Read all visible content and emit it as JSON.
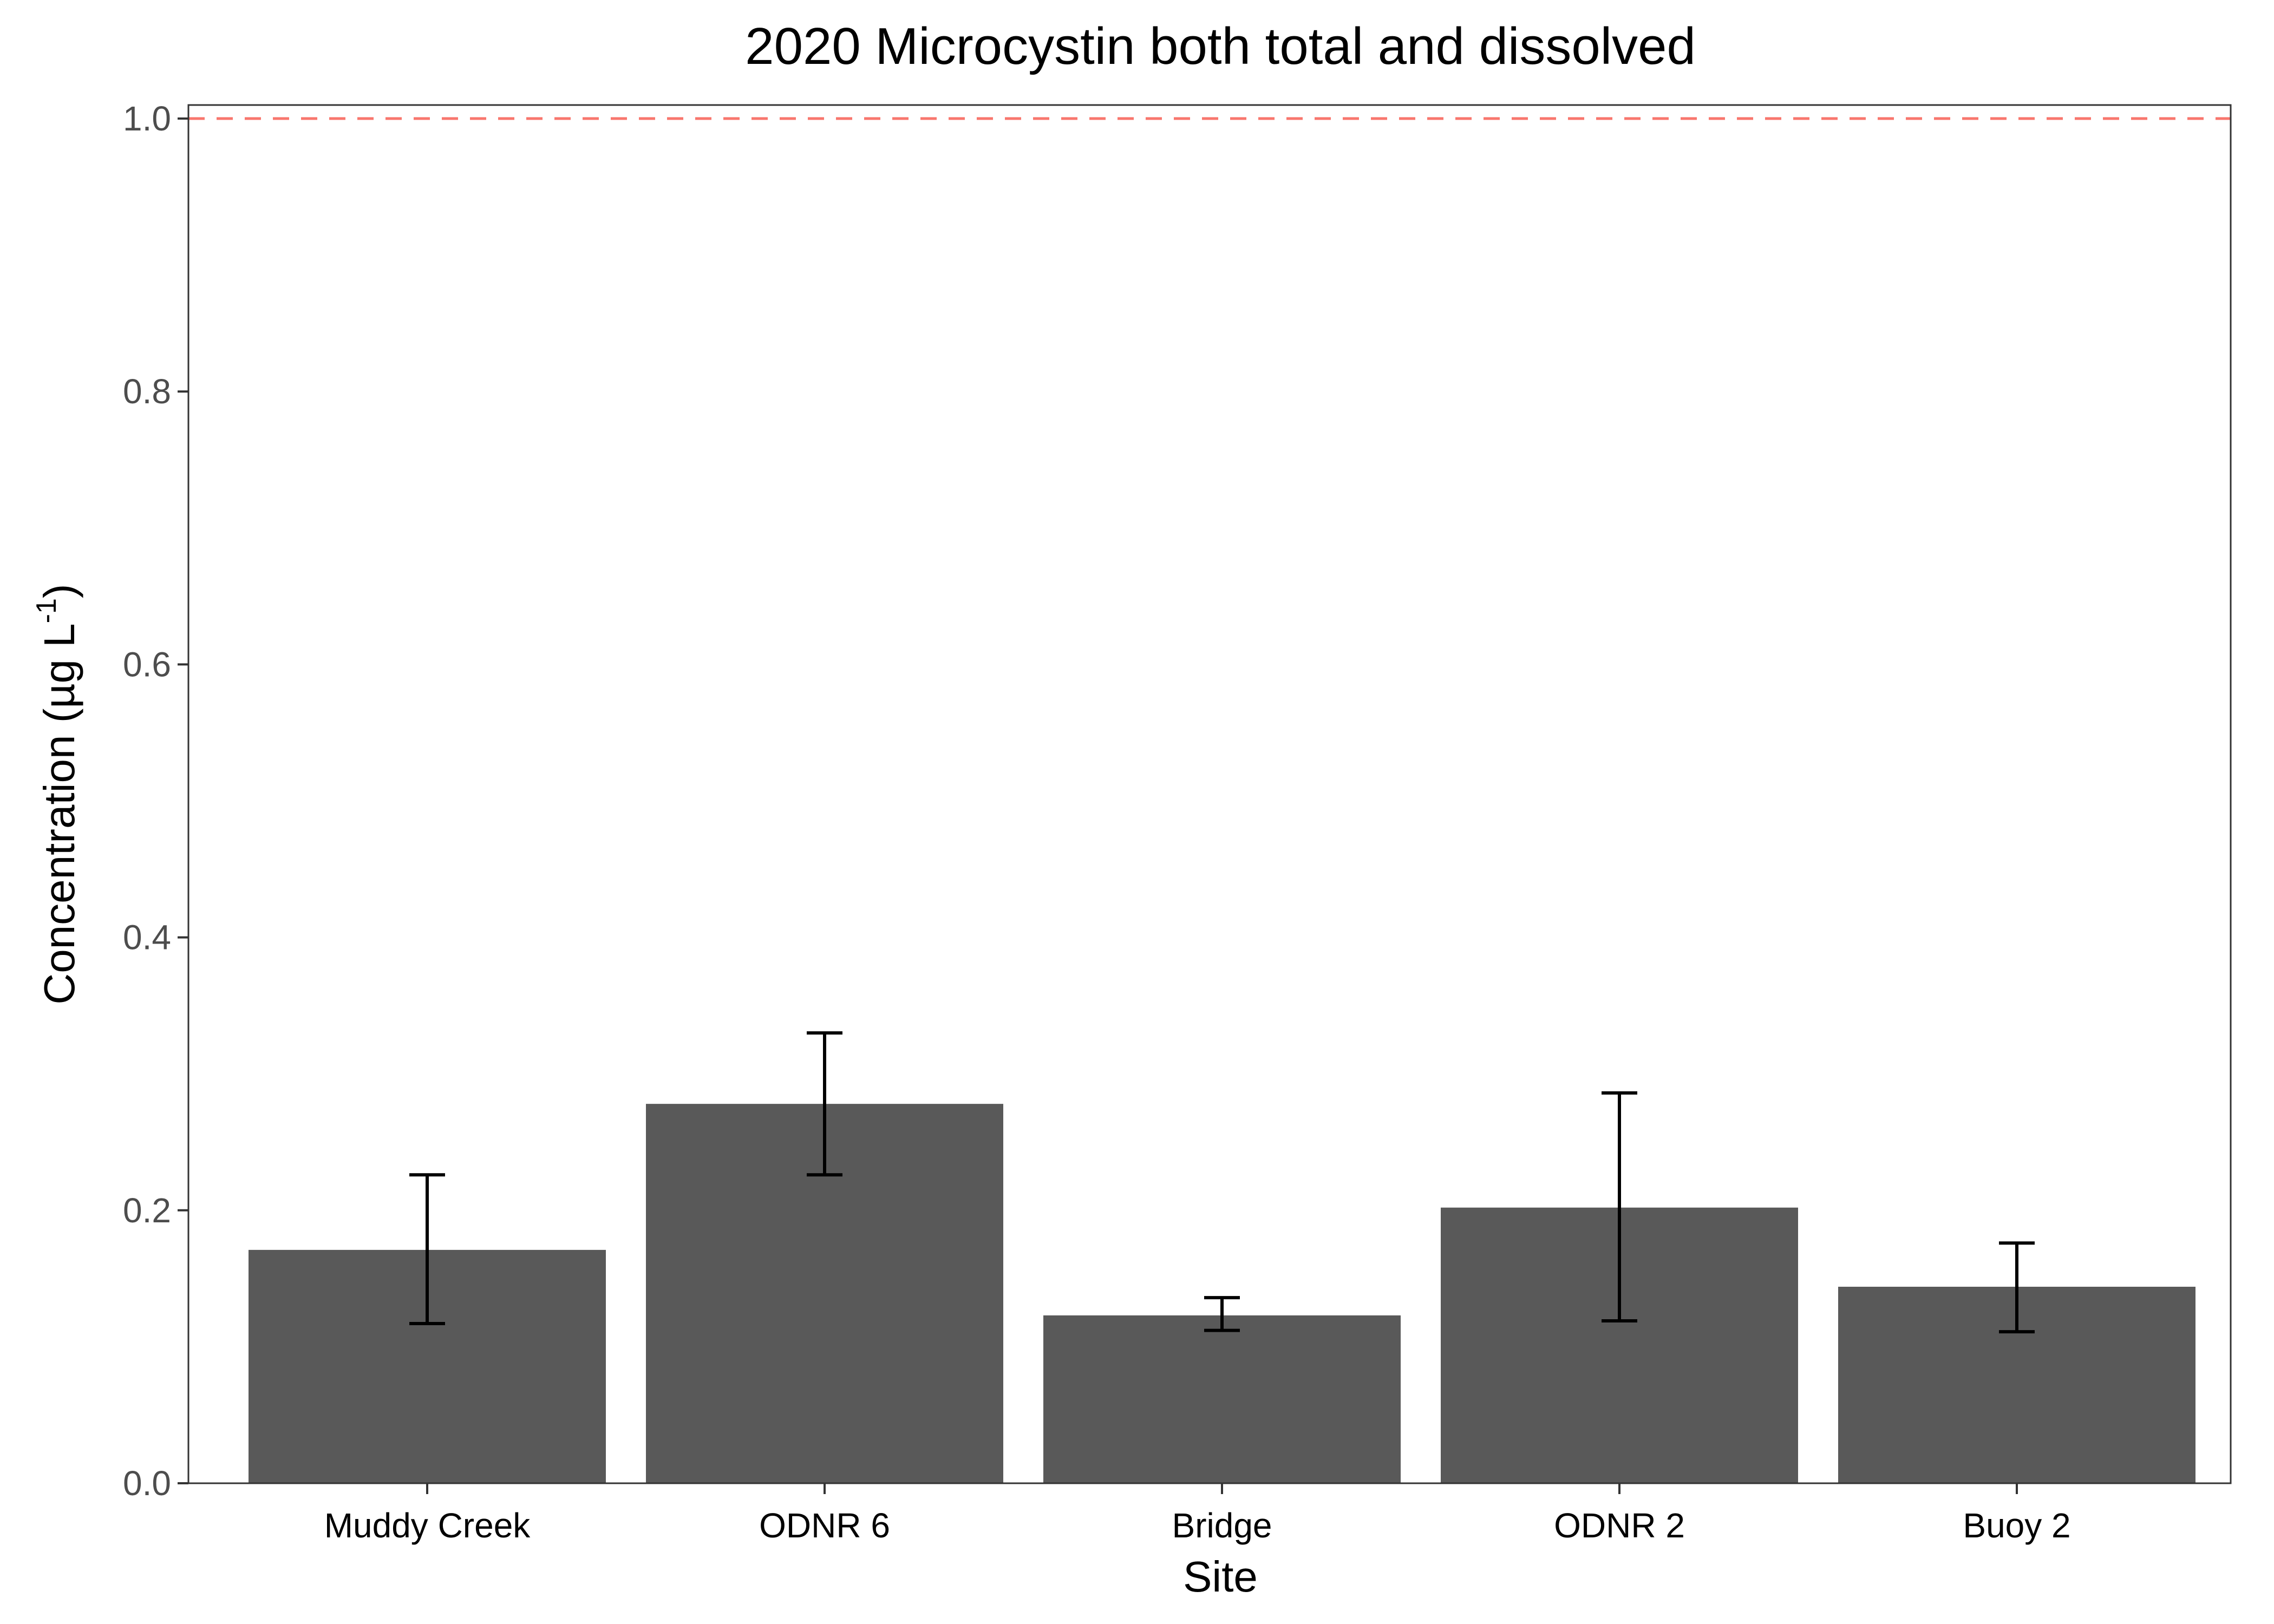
{
  "chart_data": {
    "type": "bar",
    "title": "2020 Microcystin both total and dissolved",
    "xlabel": "Site",
    "ylabel": "Concentration (µg L-1)",
    "ylabel_parts": {
      "main": "Concentration (µg L",
      "superscript": "-1",
      "close": ")"
    },
    "categories": [
      "Muddy Creek",
      "ODNR 6",
      "Bridge",
      "ODNR 2",
      "Buoy 2"
    ],
    "values": [
      0.171,
      0.278,
      0.123,
      0.202,
      0.144
    ],
    "error_bars": [
      {
        "low": 0.117,
        "high": 0.226
      },
      {
        "low": 0.226,
        "high": 0.33
      },
      {
        "low": 0.112,
        "high": 0.136
      },
      {
        "low": 0.119,
        "high": 0.286
      },
      {
        "low": 0.111,
        "high": 0.176
      }
    ],
    "ylim": [
      0,
      1.0
    ],
    "y_ticks": [
      "0.0",
      "0.2",
      "0.4",
      "0.6",
      "0.8",
      "1.0"
    ],
    "reference_line": {
      "y": 1.0,
      "style": "dashed",
      "color": "#F8766D"
    },
    "bar_color": "#595959",
    "grid": false,
    "legend": "none"
  }
}
